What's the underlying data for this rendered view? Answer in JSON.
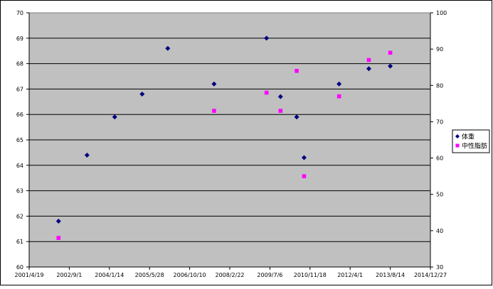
{
  "chart_data": {
    "type": "scatter",
    "title": "",
    "xlabel": "",
    "ylabel": "",
    "y2label": "",
    "grid": true,
    "plot_background": "#c0c0c0",
    "legend_position": "right",
    "x_range": [
      "2001-04-19",
      "2014-12-27"
    ],
    "x_tick_labels": [
      "2001/4/19",
      "2002/9/1",
      "2004/1/14",
      "2005/5/28",
      "2006/10/10",
      "2008/2/22",
      "2009/7/6",
      "2010/11/18",
      "2012/4/1",
      "2013/8/14",
      "2014/12/27"
    ],
    "ylim": [
      60,
      70
    ],
    "y_ticks": [
      60,
      61,
      62,
      63,
      64,
      65,
      66,
      67,
      68,
      69,
      70
    ],
    "y2lim": [
      30,
      100
    ],
    "y2_ticks": [
      30,
      40,
      50,
      60,
      70,
      80,
      90,
      100
    ],
    "series": [
      {
        "name": "体重",
        "axis": "left",
        "marker": "diamond",
        "color": "#000080",
        "points": [
          {
            "x": "2002-04-20",
            "y": 61.8
          },
          {
            "x": "2003-04-10",
            "y": 64.4
          },
          {
            "x": "2004-03-20",
            "y": 65.9
          },
          {
            "x": "2005-02-25",
            "y": 66.8
          },
          {
            "x": "2006-01-10",
            "y": 68.6
          },
          {
            "x": "2007-08-10",
            "y": 67.2
          },
          {
            "x": "2009-05-25",
            "y": 69.0
          },
          {
            "x": "2009-11-15",
            "y": 66.7
          },
          {
            "x": "2010-06-05",
            "y": 65.9
          },
          {
            "x": "2010-09-05",
            "y": 64.3
          },
          {
            "x": "2011-11-15",
            "y": 67.2
          },
          {
            "x": "2012-11-20",
            "y": 67.8
          },
          {
            "x": "2013-08-14",
            "y": 67.9
          }
        ]
      },
      {
        "name": "中性脂肪",
        "axis": "right",
        "marker": "square",
        "color": "#ff00ff",
        "points": [
          {
            "x": "2002-04-20",
            "y": 38
          },
          {
            "x": "2007-08-10",
            "y": 73
          },
          {
            "x": "2009-05-25",
            "y": 78
          },
          {
            "x": "2009-11-15",
            "y": 73
          },
          {
            "x": "2010-06-05",
            "y": 84
          },
          {
            "x": "2010-09-05",
            "y": 55
          },
          {
            "x": "2011-11-15",
            "y": 77
          },
          {
            "x": "2012-11-20",
            "y": 87
          },
          {
            "x": "2013-08-14",
            "y": 89
          }
        ]
      }
    ]
  }
}
